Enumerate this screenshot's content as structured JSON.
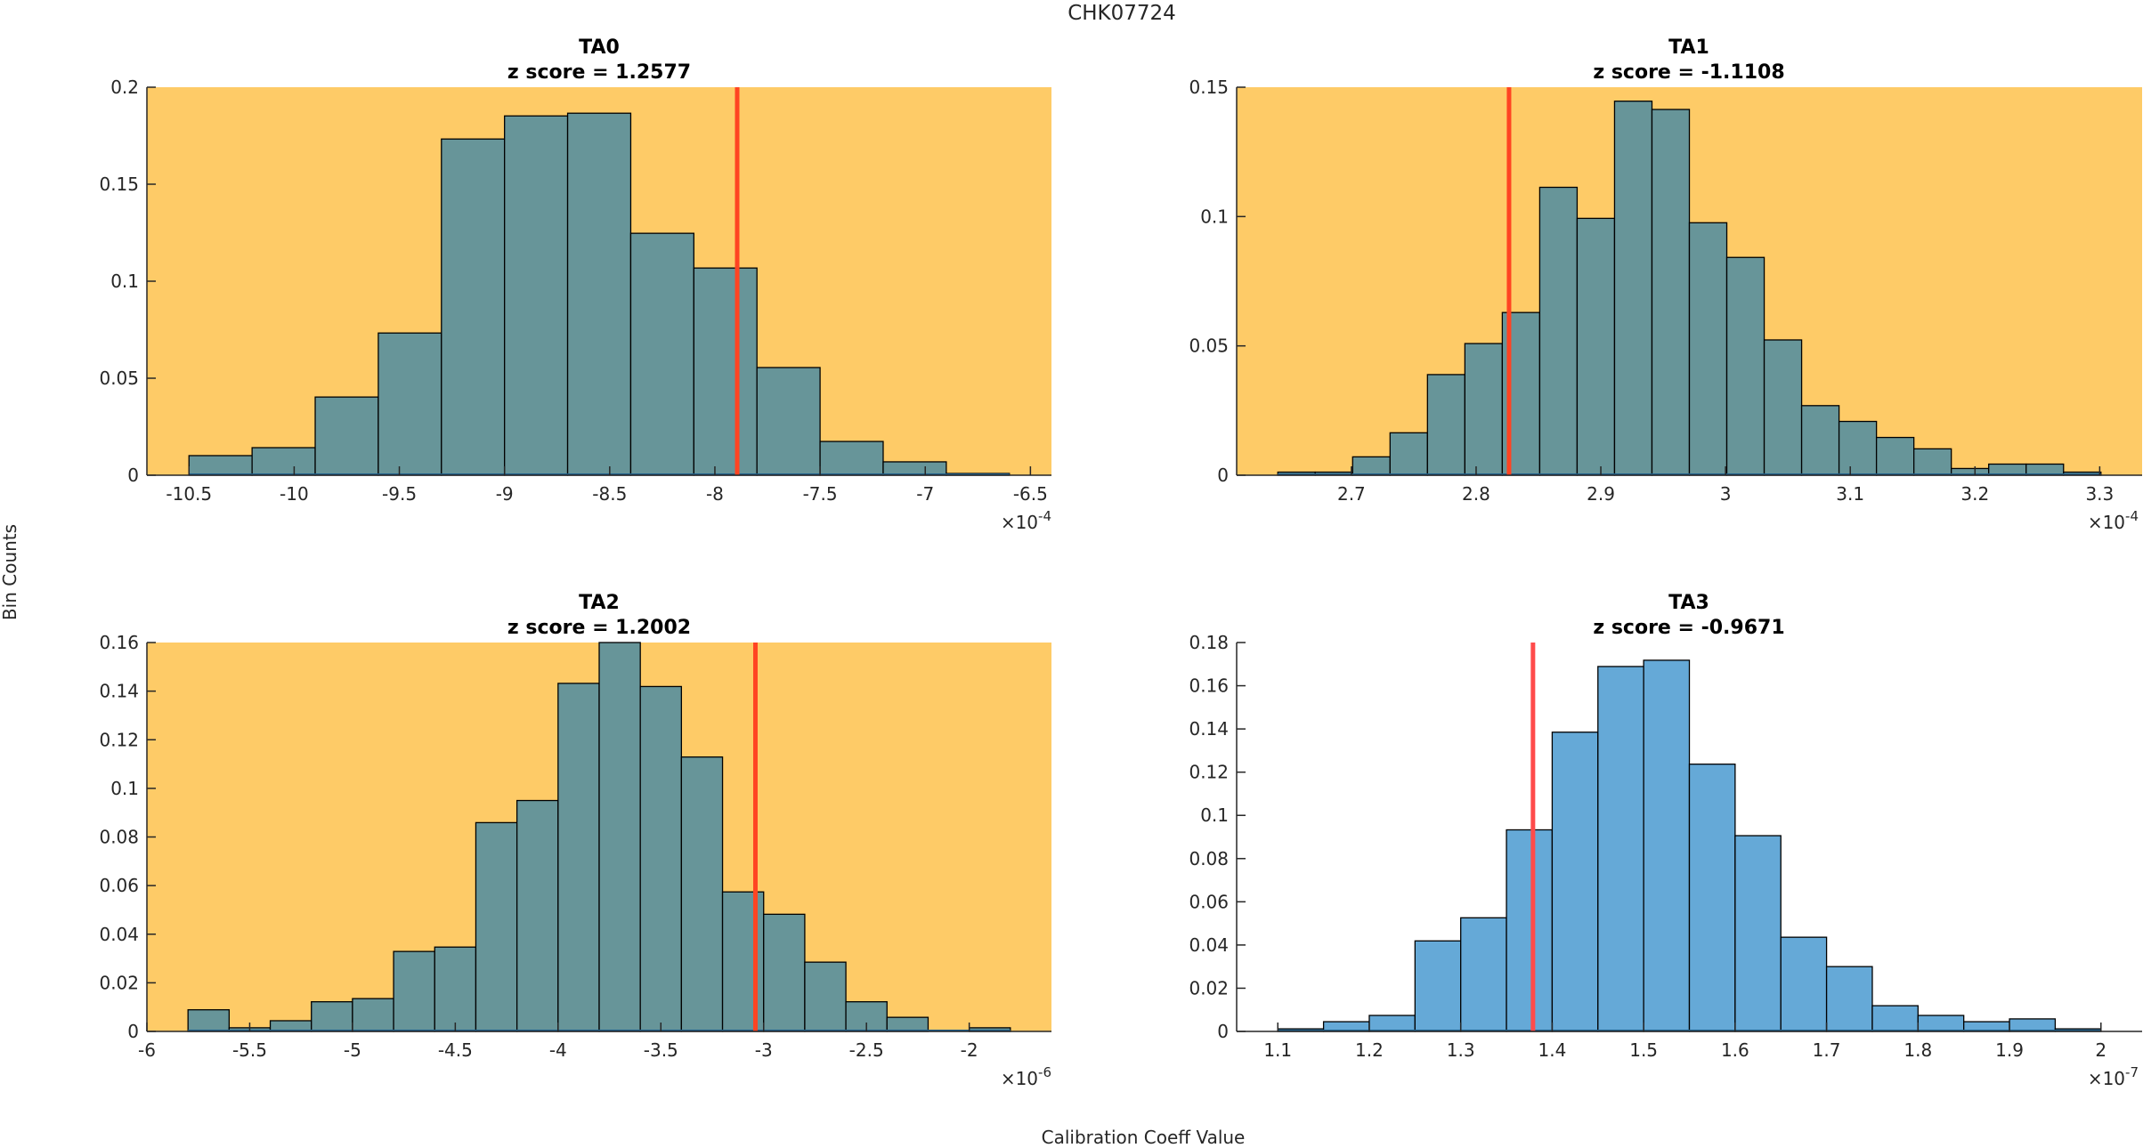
{
  "figure": {
    "title": "CHK07724",
    "ylabel": "Bin Counts",
    "xlabel": "Calibration Coeff Value"
  },
  "colors": {
    "flagged_background": "#FECB67",
    "flagged_bar": "#679599",
    "normal_bar": "#65A9D7",
    "flagged_marker": "#FF4422",
    "normal_marker": "#FF4B4B",
    "bar_edge": "#000000"
  },
  "chart_data": [
    {
      "type": "bar",
      "name": "TA0",
      "title": "TA0",
      "subtitle": "z score = 1.2577",
      "flagged": true,
      "xlabel": "",
      "ylabel": "",
      "x_exponent_label": "×10",
      "x_exponent": "-4",
      "bin_start": -10.5,
      "bin_width": 0.3,
      "values": [
        0.0101,
        0.0142,
        0.0403,
        0.0733,
        0.1733,
        0.1852,
        0.1866,
        0.1247,
        0.1068,
        0.0555,
        0.0174,
        0.0069,
        0.0009
      ],
      "marker_x": -7.894,
      "xlim": [
        -10.7,
        -6.4
      ],
      "ylim": [
        0,
        0.2
      ],
      "xticks": [
        -10.5,
        -10,
        -9.5,
        -9,
        -8.5,
        -8,
        -7.5,
        -7,
        -6.5
      ],
      "xtick_labels": [
        "-10.5",
        "-10",
        "-9.5",
        "-9",
        "-8.5",
        "-8",
        "-7.5",
        "-7",
        "-6.5"
      ],
      "yticks": [
        0,
        0.05,
        0.1,
        0.15,
        0.2
      ],
      "ytick_labels": [
        "0",
        "0.05",
        "0.1",
        "0.15",
        "0.2"
      ],
      "grid": false
    },
    {
      "type": "bar",
      "name": "TA1",
      "title": "TA1",
      "subtitle": "z score = -1.1108",
      "flagged": true,
      "xlabel": "",
      "ylabel": "",
      "x_exponent_label": "×10",
      "x_exponent": "-4",
      "bin_start": 2.641,
      "bin_width": 0.03,
      "values": [
        0.0012,
        0.0012,
        0.0071,
        0.0164,
        0.0389,
        0.0509,
        0.0629,
        0.1113,
        0.0993,
        0.1446,
        0.1414,
        0.0976,
        0.0842,
        0.0523,
        0.0269,
        0.0208,
        0.0146,
        0.0102,
        0.0026,
        0.0043,
        0.0043,
        0.0012
      ],
      "marker_x": 2.8264,
      "xlim": [
        2.608,
        3.334
      ],
      "ylim": [
        0,
        0.15
      ],
      "xticks": [
        2.7,
        2.8,
        2.9,
        3.0,
        3.1,
        3.2,
        3.3
      ],
      "xtick_labels": [
        "2.7",
        "2.8",
        "2.9",
        "3",
        "3.1",
        "3.2",
        "3.3"
      ],
      "yticks": [
        0,
        0.05,
        0.1,
        0.15
      ],
      "ytick_labels": [
        "0",
        "0.05",
        "0.1",
        "0.15"
      ],
      "grid": false
    },
    {
      "type": "bar",
      "name": "TA2",
      "title": "TA2",
      "subtitle": "z score = 1.2002",
      "flagged": true,
      "xlabel": "",
      "ylabel": "",
      "x_exponent_label": "×10",
      "x_exponent": "-6",
      "bin_start": -5.8,
      "bin_width": 0.2,
      "values": [
        0.0089,
        0.0015,
        0.0044,
        0.0122,
        0.0135,
        0.0329,
        0.0347,
        0.0859,
        0.095,
        0.1432,
        0.16,
        0.1419,
        0.1129,
        0.0574,
        0.0482,
        0.0285,
        0.0122,
        0.0058,
        0.0,
        0.0015
      ],
      "marker_x": -3.04,
      "xlim": [
        -6.0,
        -1.6
      ],
      "ylim": [
        0,
        0.16
      ],
      "xticks": [
        -6,
        -5.5,
        -5,
        -4.5,
        -4,
        -3.5,
        -3,
        -2.5,
        -2
      ],
      "xtick_labels": [
        "-6",
        "-5.5",
        "-5",
        "-4.5",
        "-4",
        "-3.5",
        "-3",
        "-2.5",
        "-2"
      ],
      "yticks": [
        0,
        0.02,
        0.04,
        0.06,
        0.08,
        0.1,
        0.12,
        0.14,
        0.16
      ],
      "ytick_labels": [
        "0",
        "0.02",
        "0.04",
        "0.06",
        "0.08",
        "0.1",
        "0.12",
        "0.14",
        "0.16"
      ],
      "grid": false
    },
    {
      "type": "bar",
      "name": "TA3",
      "title": "TA3",
      "subtitle": "z score = -0.9671",
      "flagged": false,
      "xlabel": "",
      "ylabel": "",
      "x_exponent_label": "×10",
      "x_exponent": "-7",
      "bin_start": 1.1,
      "bin_width": 0.05,
      "values": [
        0.0012,
        0.0045,
        0.0074,
        0.0419,
        0.0526,
        0.0933,
        0.1385,
        0.1689,
        0.1718,
        0.1237,
        0.0906,
        0.0436,
        0.03,
        0.0119,
        0.0074,
        0.0045,
        0.0058,
        0.0012
      ],
      "marker_x": 1.379,
      "xlim": [
        1.055,
        2.045
      ],
      "ylim": [
        0,
        0.18
      ],
      "xticks": [
        1.1,
        1.2,
        1.3,
        1.4,
        1.5,
        1.6,
        1.7,
        1.8,
        1.9,
        2.0
      ],
      "xtick_labels": [
        "1.1",
        "1.2",
        "1.3",
        "1.4",
        "1.5",
        "1.6",
        "1.7",
        "1.8",
        "1.9",
        "2"
      ],
      "yticks": [
        0,
        0.02,
        0.04,
        0.06,
        0.08,
        0.1,
        0.12,
        0.14,
        0.16,
        0.18
      ],
      "ytick_labels": [
        "0",
        "0.02",
        "0.04",
        "0.06",
        "0.08",
        "0.1",
        "0.12",
        "0.14",
        "0.16",
        "0.18"
      ],
      "grid": false
    }
  ]
}
